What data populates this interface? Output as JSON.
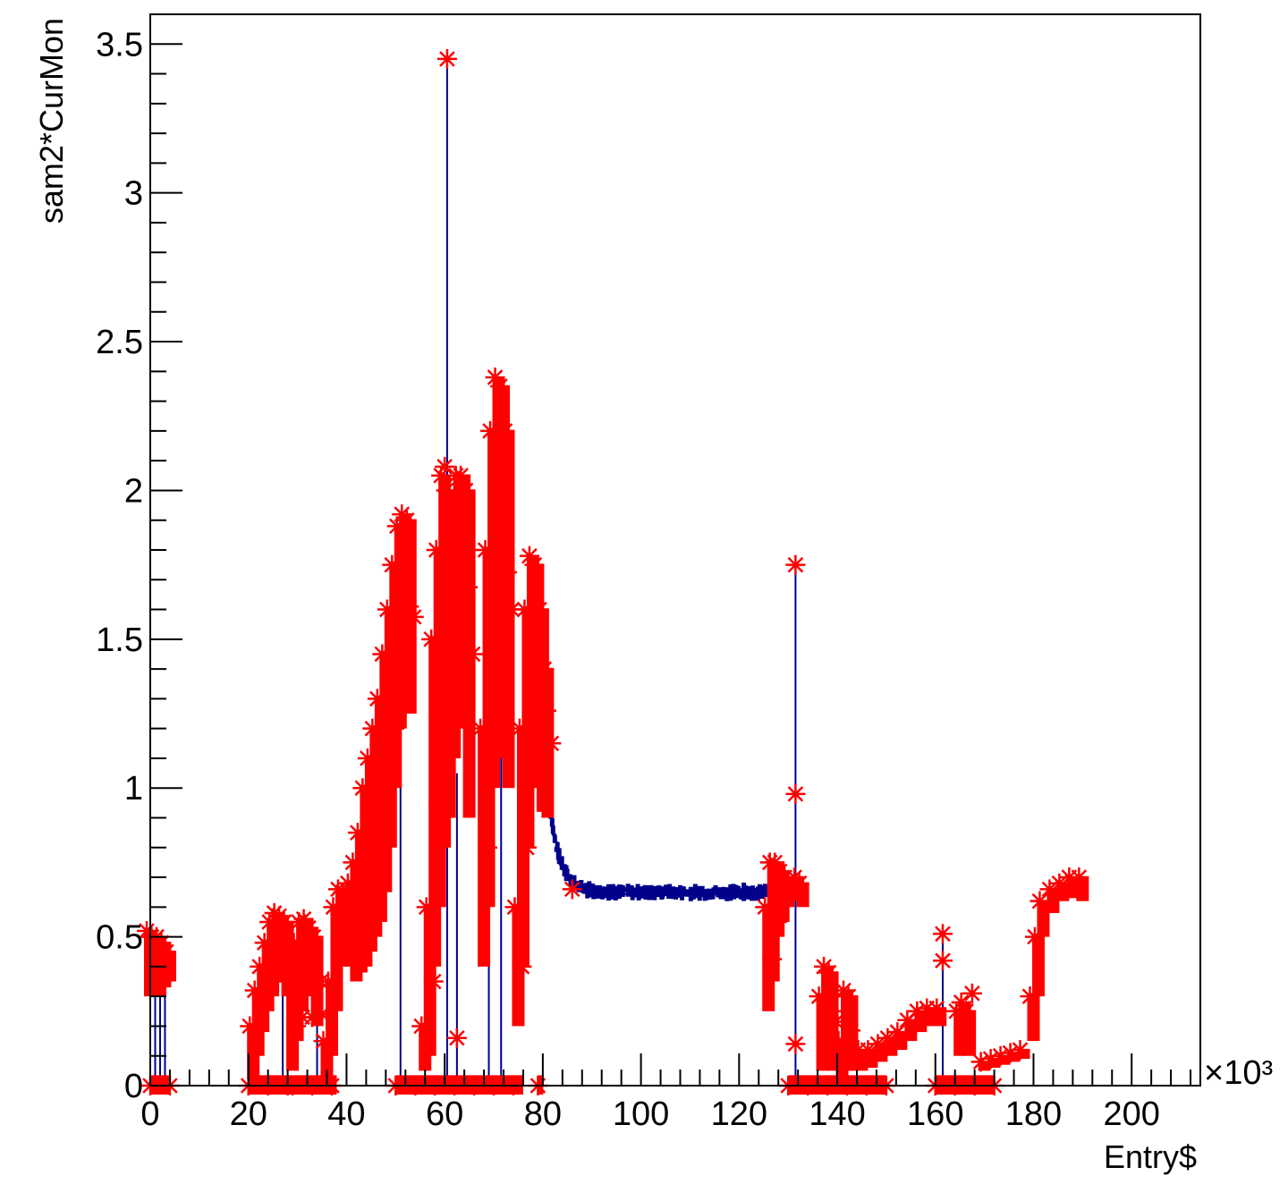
{
  "chart_data": {
    "type": "scatter",
    "title": "",
    "xlabel": "Entry$",
    "ylabel": "sam2*CurMon",
    "x_multiplier_label": "×10³",
    "xlim": [
      0,
      214
    ],
    "ylim": [
      0,
      3.6
    ],
    "xticks": [
      "0",
      "20",
      "40",
      "60",
      "80",
      "100",
      "120",
      "140",
      "160",
      "180",
      "200"
    ],
    "yticks": [
      "0",
      "0.5",
      "1",
      "1.5",
      "2",
      "2.5",
      "3",
      "3.5"
    ],
    "grid": false,
    "legend": "none",
    "colors": {
      "line": "#00008b",
      "marker": "#ff0000",
      "frame": "#000000"
    },
    "series": [
      {
        "color": "#ff0000",
        "bands": [
          [
            0,
            0.3,
            0.52
          ],
          [
            1,
            0.32,
            0.5
          ],
          [
            2,
            0.3,
            0.5
          ],
          [
            3,
            0.33,
            0.48
          ],
          [
            4,
            0.35,
            0.45
          ],
          [
            21,
            0.02,
            0.2
          ],
          [
            22,
            0.1,
            0.32
          ],
          [
            23,
            0.18,
            0.4
          ],
          [
            24,
            0.25,
            0.48
          ],
          [
            25,
            0.3,
            0.55
          ],
          [
            26,
            0.35,
            0.58
          ],
          [
            27,
            0.4,
            0.57
          ],
          [
            28,
            0.3,
            0.55
          ],
          [
            29,
            0.05,
            0.35
          ],
          [
            30,
            0.15,
            0.48
          ],
          [
            31,
            0.25,
            0.55
          ],
          [
            32,
            0.32,
            0.56
          ],
          [
            33,
            0.3,
            0.53
          ],
          [
            34,
            0.2,
            0.5
          ],
          [
            36,
            0.02,
            0.15
          ],
          [
            37,
            0.1,
            0.35
          ],
          [
            38,
            0.25,
            0.6
          ],
          [
            39,
            0.4,
            0.66
          ],
          [
            40,
            0.5,
            0.65
          ],
          [
            41,
            0.4,
            0.68
          ],
          [
            42,
            0.35,
            0.75
          ],
          [
            43,
            0.38,
            0.85
          ],
          [
            44,
            0.4,
            1.0
          ],
          [
            45,
            0.45,
            1.1
          ],
          [
            46,
            0.5,
            1.2
          ],
          [
            47,
            0.55,
            1.3
          ],
          [
            48,
            0.65,
            1.45
          ],
          [
            49,
            0.8,
            1.6
          ],
          [
            50,
            1.0,
            1.75
          ],
          [
            51,
            1.2,
            1.88
          ],
          [
            52,
            1.3,
            1.92
          ],
          [
            53,
            1.25,
            1.9
          ],
          [
            56,
            0.05,
            0.2
          ],
          [
            57,
            0.1,
            0.6
          ],
          [
            58,
            0.4,
            1.5
          ],
          [
            59,
            0.6,
            1.8
          ],
          [
            60,
            0.8,
            2.05
          ],
          [
            61,
            0.9,
            2.0
          ],
          [
            62,
            1.1,
            1.95
          ],
          [
            63,
            1.2,
            2.05
          ],
          [
            64,
            1.3,
            2.05
          ],
          [
            65,
            0.9,
            2.0
          ],
          [
            68,
            0.4,
            1.2
          ],
          [
            69,
            0.6,
            1.8
          ],
          [
            70,
            1.0,
            2.2
          ],
          [
            71,
            1.2,
            2.38
          ],
          [
            72,
            1.1,
            2.35
          ],
          [
            73,
            1.0,
            2.2
          ],
          [
            75,
            0.2,
            0.6
          ],
          [
            76,
            0.4,
            1.2
          ],
          [
            77,
            0.8,
            1.6
          ],
          [
            78,
            1.0,
            1.78
          ],
          [
            79,
            1.05,
            1.75
          ],
          [
            80,
            0.92,
            1.6
          ],
          [
            81,
            0.9,
            1.4
          ],
          [
            126,
            0.25,
            0.6
          ],
          [
            127,
            0.35,
            0.75
          ],
          [
            128,
            0.5,
            0.75
          ],
          [
            129,
            0.55,
            0.72
          ],
          [
            130,
            0.6,
            0.7
          ],
          [
            132,
            0.62,
            0.7
          ],
          [
            133,
            0.6,
            0.68
          ],
          [
            137,
            0.05,
            0.3
          ],
          [
            138,
            0.1,
            0.4
          ],
          [
            139,
            0.05,
            0.38
          ],
          [
            141,
            0.02,
            0.15
          ],
          [
            142,
            0.05,
            0.32
          ],
          [
            143,
            0.05,
            0.3
          ],
          [
            145,
            0.05,
            0.12
          ],
          [
            147,
            0.06,
            0.12
          ],
          [
            149,
            0.08,
            0.14
          ],
          [
            151,
            0.1,
            0.16
          ],
          [
            153,
            0.12,
            0.18
          ],
          [
            155,
            0.15,
            0.22
          ],
          [
            157,
            0.18,
            0.25
          ],
          [
            159,
            0.2,
            0.26
          ],
          [
            161,
            0.2,
            0.26
          ],
          [
            165,
            0.1,
            0.25
          ],
          [
            166,
            0.15,
            0.28
          ],
          [
            167,
            0.1,
            0.25
          ],
          [
            170,
            0.05,
            0.08
          ],
          [
            172,
            0.06,
            0.09
          ],
          [
            174,
            0.07,
            0.1
          ],
          [
            176,
            0.08,
            0.11
          ],
          [
            178,
            0.09,
            0.12
          ],
          [
            180,
            0.15,
            0.3
          ],
          [
            181,
            0.3,
            0.5
          ],
          [
            182,
            0.5,
            0.62
          ],
          [
            184,
            0.58,
            0.66
          ],
          [
            186,
            0.62,
            0.68
          ],
          [
            188,
            0.63,
            0.7
          ],
          [
            190,
            0.62,
            0.7
          ]
        ],
        "floor_bands": [
          [
            0,
            4
          ],
          [
            20,
            29
          ],
          [
            29,
            38
          ],
          [
            50,
            76
          ],
          [
            79,
            80
          ],
          [
            130,
            150
          ],
          [
            160,
            172
          ]
        ],
        "outliers": [
          [
            60.5,
            3.45
          ],
          [
            60.0,
            2.08
          ],
          [
            86.0,
            0.66
          ],
          [
            131.5,
            1.75
          ],
          [
            131.5,
            0.98
          ],
          [
            131.5,
            0.14
          ],
          [
            161.5,
            0.51
          ],
          [
            161.5,
            0.42
          ],
          [
            167.5,
            0.31
          ],
          [
            31.0,
            0.23
          ],
          [
            33.0,
            0.23
          ],
          [
            62.5,
            0.16
          ],
          [
            71.5,
            1.16
          ],
          [
            35.0,
            0.24
          ]
        ]
      },
      {
        "color": "#00008b",
        "plateau": {
          "x": [
            81,
            133
          ],
          "start": 1.0,
          "level": 0.65,
          "jitter": 0.03
        },
        "spikes": [
          [
            1,
            0.5
          ],
          [
            2,
            0.45
          ],
          [
            3,
            0.4
          ],
          [
            27,
            0.55
          ],
          [
            34,
            0.5
          ],
          [
            51,
            1.85
          ],
          [
            60.5,
            3.45
          ],
          [
            62.5,
            1.05
          ],
          [
            69.0,
            1.15
          ],
          [
            71.5,
            1.16
          ],
          [
            131.5,
            1.75
          ],
          [
            161.5,
            0.51
          ]
        ]
      }
    ]
  }
}
